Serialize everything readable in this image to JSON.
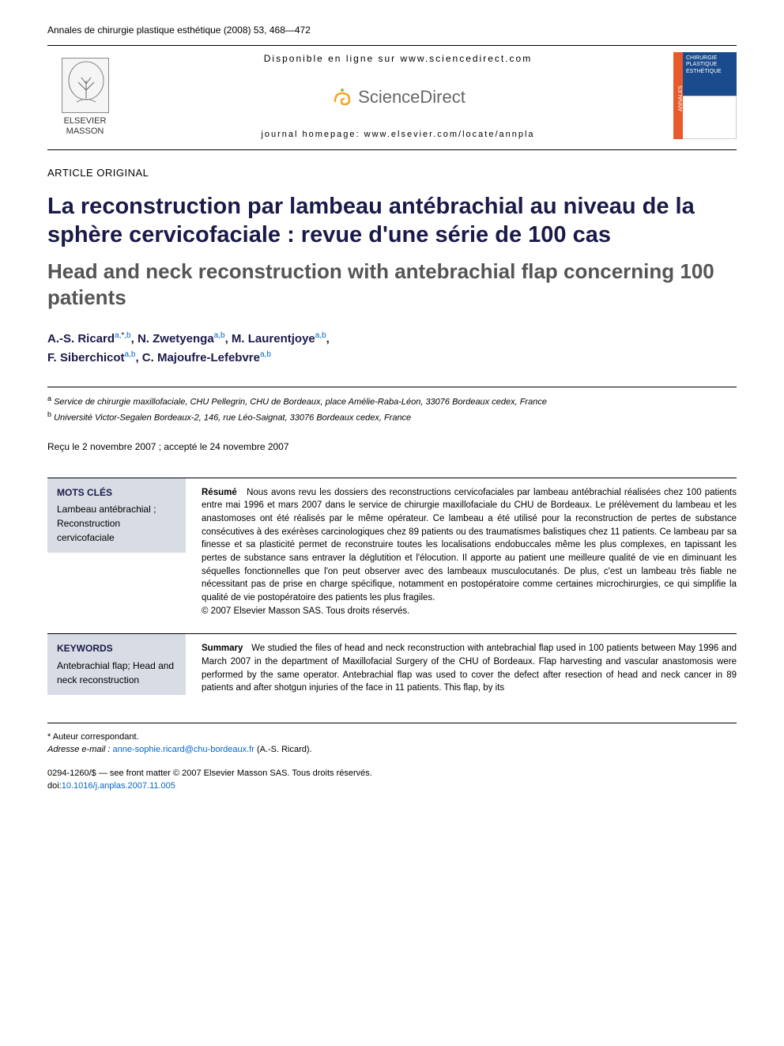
{
  "journal_ref": "Annales de chirurgie plastique esthétique (2008) 53, 468—472",
  "header": {
    "availability": "Disponible en ligne sur www.sciencedirect.com",
    "sd_brand": "ScienceDirect",
    "homepage": "journal homepage: www.elsevier.com/locate/annpla",
    "publisher": "ELSEVIER MASSON",
    "cover_spine": "ANNALES",
    "cover_title1": "CHIRURGIE",
    "cover_title2": "PLASTIQUE",
    "cover_title3": "ESTHÉTIQUE"
  },
  "article_type": "ARTICLE ORIGINAL",
  "title_fr": "La reconstruction par lambeau antébrachial au niveau de la sphère cervicofaciale : revue d'une série de 100 cas",
  "title_en": "Head and neck reconstruction with antebrachial flap concerning 100 patients",
  "authors": [
    {
      "name": "A.-S. Ricard",
      "marks": "a,*,b"
    },
    {
      "name": "N. Zwetyenga",
      "marks": "a,b"
    },
    {
      "name": "M. Laurentjoye",
      "marks": "a,b"
    },
    {
      "name": "F. Siberchicot",
      "marks": "a,b"
    },
    {
      "name": "C. Majoufre-Lefebvre",
      "marks": "a,b"
    }
  ],
  "affiliations": {
    "a": "Service de chirurgie maxillofaciale, CHU Pellegrin, CHU de Bordeaux, place Amélie-Raba-Léon, 33076 Bordeaux cedex, France",
    "b": "Université Victor-Segalen Bordeaux-2, 146, rue Léo-Saignat, 33076 Bordeaux cedex, France"
  },
  "dates": "Reçu le 2 novembre 2007 ; accepté le 24 novembre 2007",
  "mots_cles": {
    "title": "MOTS CLÉS",
    "items": "Lambeau antébrachial ; Reconstruction cervicofaciale"
  },
  "resume": {
    "label": "Résumé",
    "text": "Nous avons revu les dossiers des reconstructions cervicofaciales par lambeau antébrachial réalisées chez 100 patients entre mai 1996 et mars 2007 dans le service de chirurgie maxillofaciale du CHU de Bordeaux. Le prélèvement du lambeau et les anastomoses ont été réalisés par le même opérateur. Ce lambeau a été utilisé pour la reconstruction de pertes de substance consécutives à des exérèses carcinologiques chez 89 patients ou des traumatismes balistiques chez 11 patients. Ce lambeau par sa finesse et sa plasticité permet de reconstruire toutes les localisations endobuccales même les plus complexes, en tapissant les pertes de substance sans entraver la déglutition et l'élocution. Il apporte au patient une meilleure qualité de vie en diminuant les séquelles fonctionnelles que l'on peut observer avec des lambeaux musculocutanés. De plus, c'est un lambeau très fiable ne nécessitant pas de prise en charge spécifique, notamment en postopératoire comme certaines microchirurgies, ce qui simplifie la qualité de vie postopératoire des patients les plus fragiles.",
    "copyright": "© 2007 Elsevier Masson SAS. Tous droits réservés."
  },
  "keywords": {
    "title": "KEYWORDS",
    "items": "Antebrachial flap; Head and neck reconstruction"
  },
  "summary": {
    "label": "Summary",
    "text": "We studied the files of head and neck reconstruction with antebrachial flap used in 100 patients between May 1996 and March 2007 in the department of Maxillofacial Surgery of the CHU of Bordeaux. Flap harvesting and vascular anastomosis were performed by the same operator. Antebrachial flap was used to cover the defect after resection of head and neck cancer in 89 patients and after shotgun injuries of the face in 11 patients. This flap, by its"
  },
  "footer": {
    "corresp": "* Auteur correspondant.",
    "email_label": "Adresse e-mail :",
    "email": "anne-sophie.ricard@chu-bordeaux.fr",
    "email_name": "(A.-S. Ricard).",
    "issn": "0294-1260/$ — see front matter © 2007 Elsevier Masson SAS. Tous droits réservés.",
    "doi_label": "doi:",
    "doi": "10.1016/j.anplas.2007.11.005"
  },
  "colors": {
    "title": "#1a1a4a",
    "link": "#0066cc",
    "keyword_bg": "#d8dce5",
    "cover_blue": "#1a4b8c",
    "cover_orange": "#e85a2c"
  }
}
